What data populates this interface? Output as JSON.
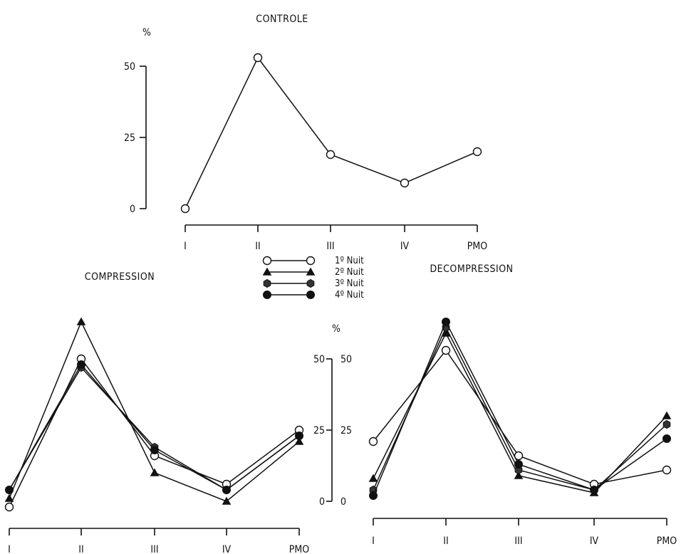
{
  "y_unit": "%",
  "legend": {
    "entries": [
      {
        "label": "1º Nuit",
        "marker": "open-circle"
      },
      {
        "label": "2º Nuit",
        "marker": "filled-triangle"
      },
      {
        "label": "3º Nuit",
        "marker": "filled-hexagon"
      },
      {
        "label": "4º Nuit",
        "marker": "filled-circle"
      }
    ]
  },
  "chart_data": [
    {
      "type": "line",
      "title": "CONTROLE",
      "categories": [
        "I",
        "II",
        "III",
        "IV",
        "PMO"
      ],
      "ylabel": "%",
      "yticks": [
        "0",
        "25",
        "50"
      ],
      "ylim": [
        0,
        50
      ],
      "grid": false,
      "series": [
        {
          "marker": "open-circle",
          "values": [
            0,
            53,
            19,
            9,
            20
          ]
        }
      ]
    },
    {
      "type": "line",
      "title": "COMPRESSION",
      "categories": [
        "I",
        "II",
        "III",
        "IV",
        "PMO"
      ],
      "ylabel": "%",
      "yticks": [
        "0",
        "25",
        "50"
      ],
      "ylim": [
        0,
        50
      ],
      "grid": false,
      "series": [
        {
          "name": "1º Nuit",
          "marker": "open-circle",
          "values": [
            -2,
            50,
            16,
            6,
            25
          ]
        },
        {
          "name": "2º Nuit",
          "marker": "filled-triangle",
          "values": [
            1,
            63,
            10,
            0,
            21
          ]
        },
        {
          "name": "3º Nuit",
          "marker": "filled-hexagon",
          "values": [
            4,
            47,
            19,
            4,
            23
          ]
        },
        {
          "name": "4º Nuit",
          "marker": "filled-circle",
          "values": [
            4,
            48,
            18,
            4,
            23
          ]
        }
      ]
    },
    {
      "type": "line",
      "title": "DECOMPRESSION",
      "categories": [
        "I",
        "II",
        "III",
        "IV",
        "PMO"
      ],
      "ylabel": "%",
      "yticks": [
        "0",
        "25",
        "50"
      ],
      "ylim": [
        0,
        50
      ],
      "grid": false,
      "series": [
        {
          "name": "1º Nuit",
          "marker": "open-circle",
          "values": [
            21,
            53,
            16,
            6,
            11
          ]
        },
        {
          "name": "2º Nuit",
          "marker": "filled-triangle",
          "values": [
            8,
            59,
            9,
            3,
            30
          ]
        },
        {
          "name": "3º Nuit",
          "marker": "filled-hexagon",
          "values": [
            4,
            61,
            11,
            4,
            27
          ]
        },
        {
          "name": "4º Nuit",
          "marker": "filled-circle",
          "values": [
            2,
            63,
            13,
            4,
            22
          ]
        }
      ]
    }
  ]
}
